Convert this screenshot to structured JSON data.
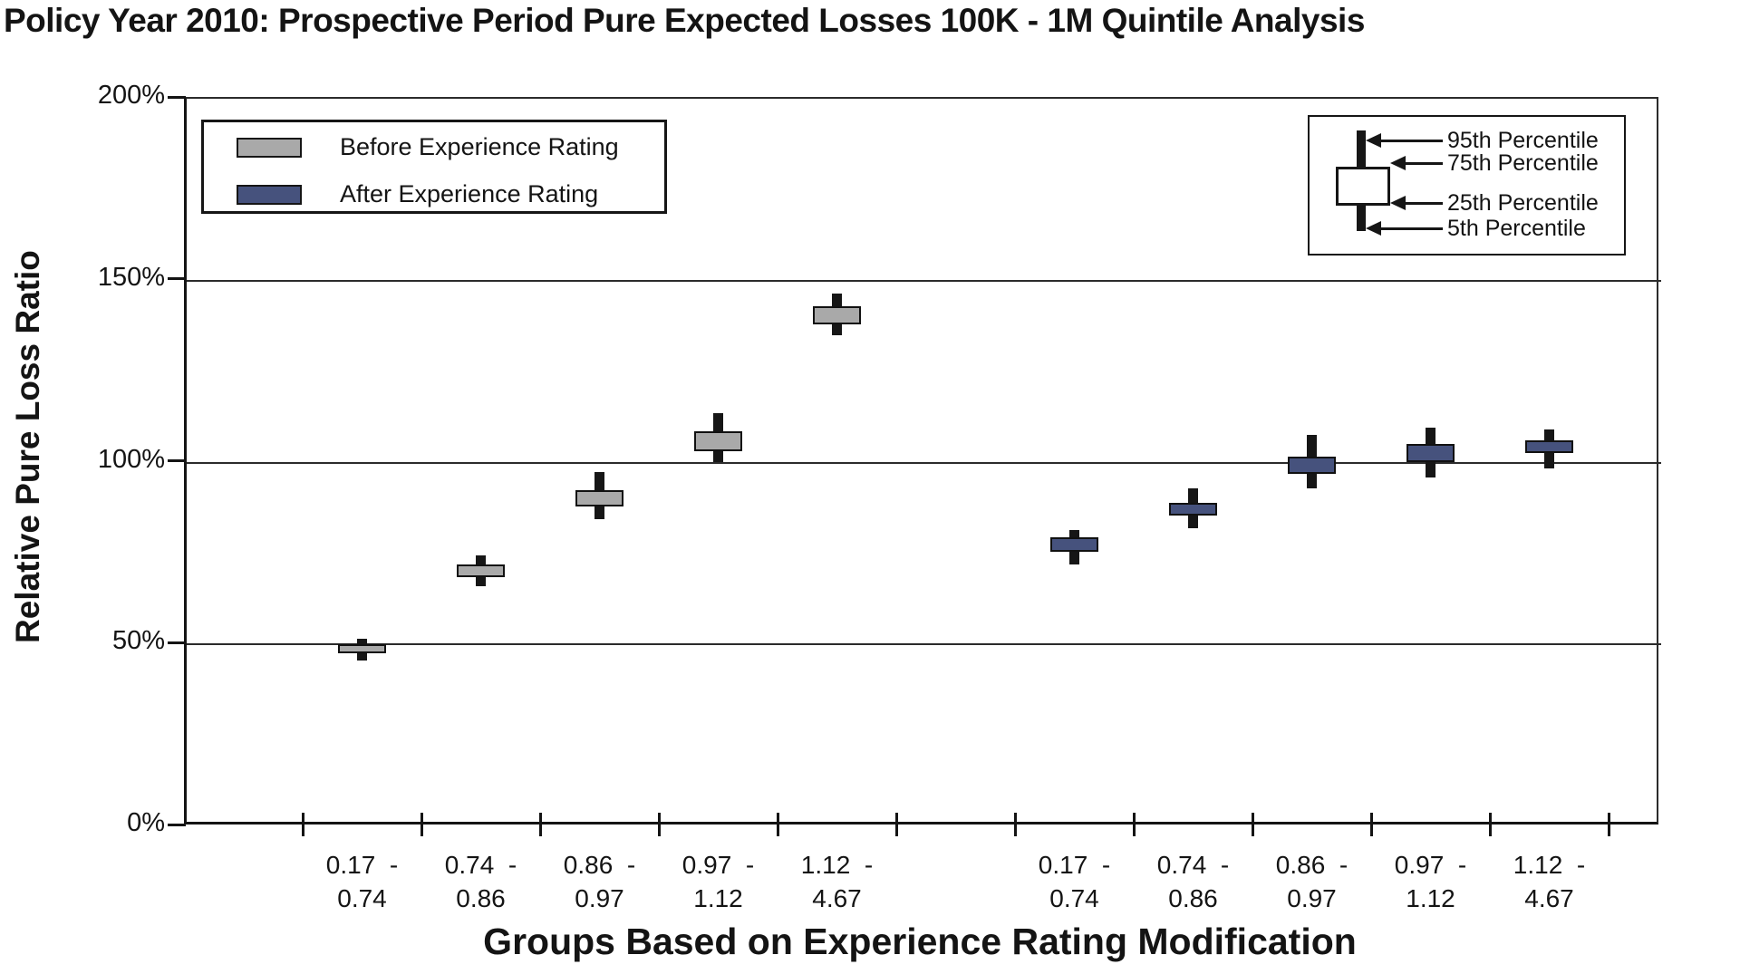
{
  "title": "Policy Year 2010: Prospective Period Pure Expected Losses 100K - 1M Quintile Analysis",
  "y_axis": {
    "title": "Relative Pure Loss Ratio",
    "ticks": [
      {
        "label": "0%",
        "value": 0
      },
      {
        "label": "50%",
        "value": 50
      },
      {
        "label": "100%",
        "value": 100
      },
      {
        "label": "150%",
        "value": 150
      },
      {
        "label": "200%",
        "value": 200
      }
    ]
  },
  "x_axis": {
    "title": "Groups Based on Experience Rating Modification"
  },
  "legend": {
    "items": [
      {
        "label": "Before Experience Rating",
        "color": "#a9a9a9"
      },
      {
        "label": "After Experience Rating",
        "color": "#46527d"
      }
    ]
  },
  "percentile_legend": {
    "items": [
      "95th Percentile",
      "75th Percentile",
      "25th Percentile",
      "5th Percentile"
    ]
  },
  "chart_data": {
    "type": "boxplot",
    "title": "Policy Year 2010: Prospective Period Pure Expected Losses 100K - 1M Quintile Analysis",
    "xlabel": "Groups Based on Experience Rating Modification",
    "ylabel": "Relative Pure Loss Ratio",
    "y_unit": "%",
    "ylim": [
      0,
      200
    ],
    "y_gridlines": [
      50,
      100,
      150,
      200
    ],
    "whiskers_shown": [
      "5th",
      "25th",
      "75th",
      "95th"
    ],
    "categories": [
      "0.17 - 0.74",
      "0.74 - 0.86",
      "0.86 - 0.97",
      "0.97 - 1.12",
      "1.12 - 4.67"
    ],
    "series": [
      {
        "name": "Before Experience Rating",
        "color": "#a9a9a9",
        "boxes": [
          {
            "p5": 45,
            "p25": 47,
            "p75": 49.5,
            "p95": 51
          },
          {
            "p5": 65.5,
            "p25": 68,
            "p75": 71.5,
            "p95": 74
          },
          {
            "p5": 84,
            "p25": 87.5,
            "p75": 92,
            "p95": 97
          },
          {
            "p5": 99.5,
            "p25": 102.5,
            "p75": 108,
            "p95": 113
          },
          {
            "p5": 134.5,
            "p25": 137.5,
            "p75": 142.5,
            "p95": 146
          }
        ]
      },
      {
        "name": "After Experience Rating",
        "color": "#46527d",
        "boxes": [
          {
            "p5": 71.5,
            "p25": 75,
            "p75": 79,
            "p95": 81
          },
          {
            "p5": 81.5,
            "p25": 85,
            "p75": 88.5,
            "p95": 92.5
          },
          {
            "p5": 92.5,
            "p25": 96.5,
            "p75": 101,
            "p95": 107
          },
          {
            "p5": 95.5,
            "p25": 99.5,
            "p75": 104.5,
            "p95": 109
          },
          {
            "p5": 98,
            "p25": 102,
            "p75": 105.5,
            "p95": 108.5
          }
        ]
      }
    ]
  }
}
